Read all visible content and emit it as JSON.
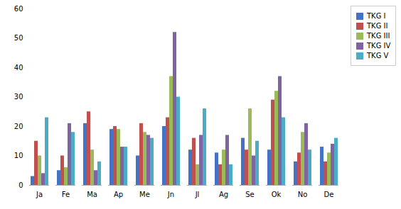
{
  "chart_data": {
    "type": "bar",
    "categories": [
      "Ja",
      "Fe",
      "Ma",
      "Ap",
      "Me",
      "Jn",
      "Jl",
      "Ag",
      "Se",
      "Ok",
      "No",
      "De"
    ],
    "series": [
      {
        "name": "TKG I",
        "color": "#4472C4",
        "values": [
          3,
          5,
          21,
          19,
          10,
          20,
          12,
          11,
          16,
          12,
          8,
          13
        ]
      },
      {
        "name": "TKG II",
        "color": "#C0504D",
        "values": [
          15,
          10,
          25,
          20,
          21,
          23,
          16,
          7,
          12,
          29,
          11,
          8
        ]
      },
      {
        "name": "TKG III",
        "color": "#9BBB59",
        "values": [
          10,
          6,
          12,
          19,
          18,
          37,
          7,
          12,
          26,
          32,
          18,
          11
        ]
      },
      {
        "name": "TKG IV",
        "color": "#8064A2",
        "values": [
          4,
          21,
          5,
          13,
          17,
          52,
          17,
          17,
          10,
          37,
          21,
          14
        ]
      },
      {
        "name": "TKG V",
        "color": "#4BACC6",
        "values": [
          23,
          18,
          8,
          13,
          16,
          30,
          26,
          7,
          15,
          23,
          12,
          16
        ]
      }
    ],
    "ylim": [
      0,
      60
    ],
    "yticks": [
      0,
      10,
      20,
      30,
      40,
      50,
      60
    ],
    "grid": false,
    "legend": "right"
  }
}
